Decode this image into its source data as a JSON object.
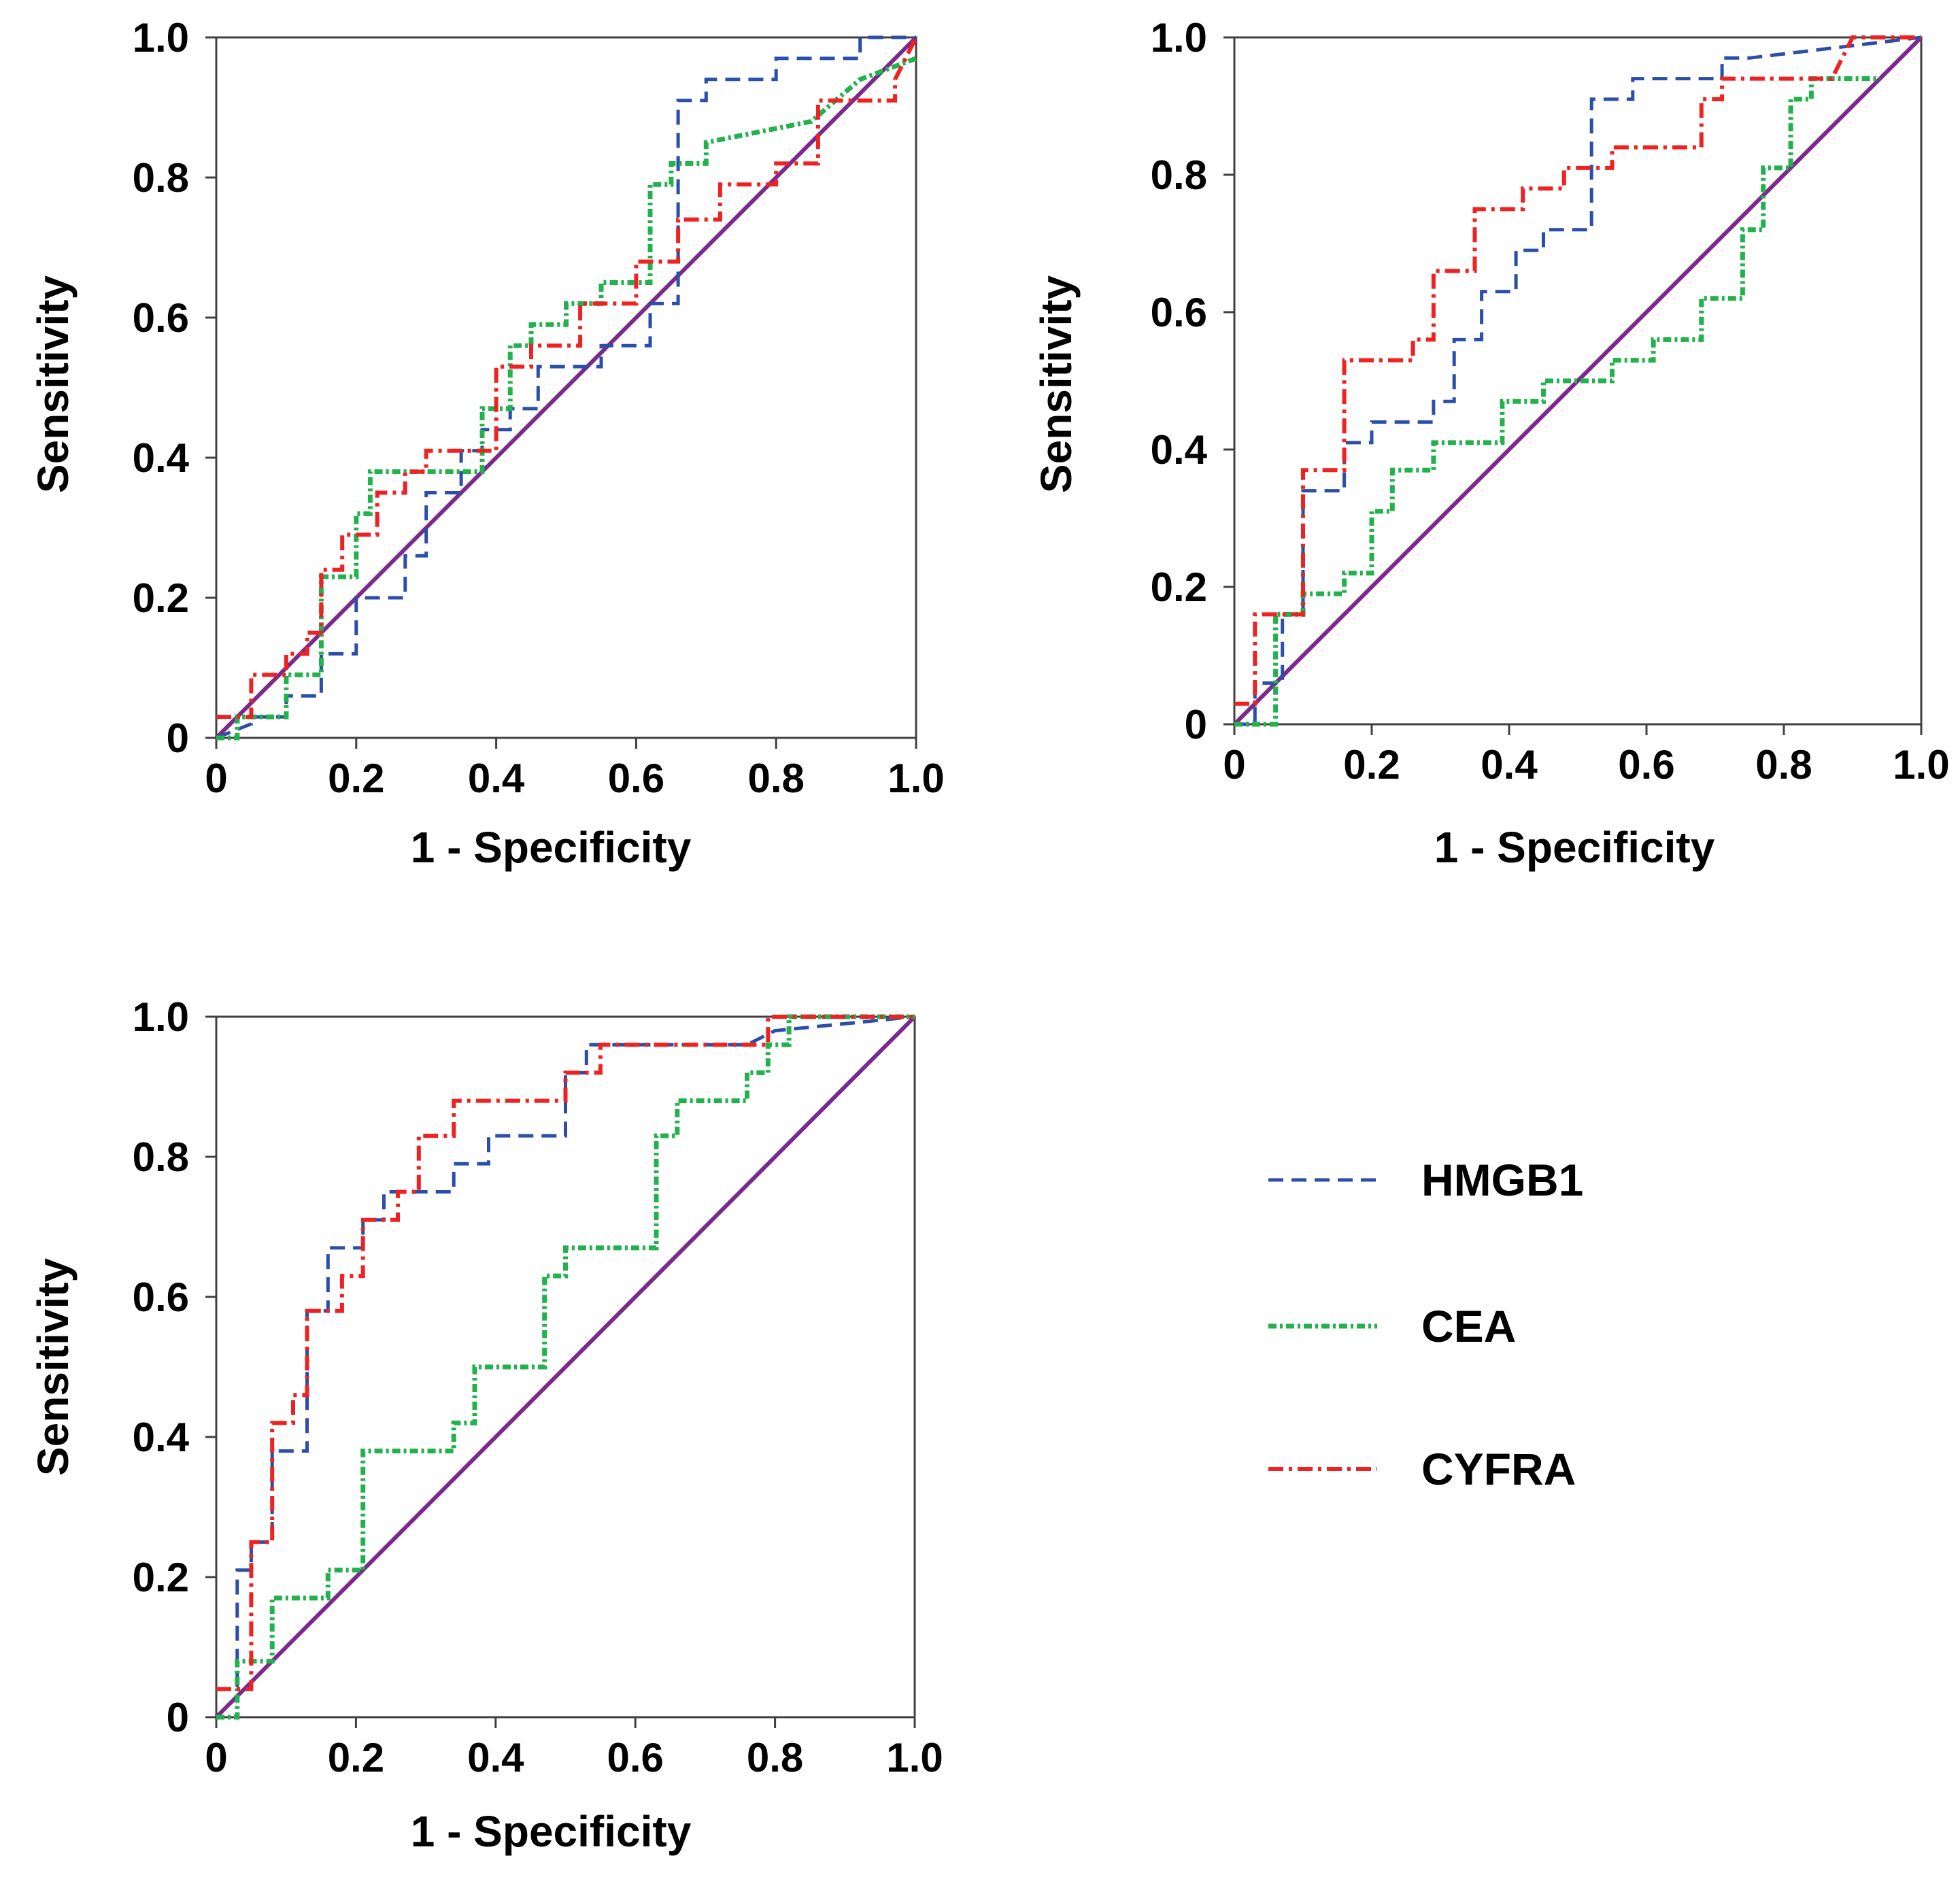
{
  "chart_data": [
    {
      "type": "line",
      "panel": "top-left",
      "title": "",
      "xlabel": "1 - Specificity",
      "ylabel": "Sensitivity",
      "xlim": [
        0,
        1
      ],
      "ylim": [
        0,
        1
      ],
      "xticks": [
        "0",
        "0.2",
        "0.4",
        "0.6",
        "0.8",
        "1.0"
      ],
      "yticks": [
        "0",
        "0.2",
        "0.4",
        "0.6",
        "0.8",
        "1.0"
      ],
      "grid": false,
      "series": [
        {
          "name": "HMGB1",
          "x": [
            0,
            0.05,
            0.05,
            0.1,
            0.1,
            0.15,
            0.15,
            0.2,
            0.2,
            0.27,
            0.27,
            0.3,
            0.3,
            0.35,
            0.35,
            0.38,
            0.38,
            0.42,
            0.42,
            0.46,
            0.46,
            0.55,
            0.55,
            0.62,
            0.62,
            0.66,
            0.66,
            0.7,
            0.7,
            0.8,
            0.8,
            0.92,
            0.92,
            1.0
          ],
          "y": [
            0,
            0.02,
            0.03,
            0.03,
            0.06,
            0.06,
            0.12,
            0.12,
            0.2,
            0.2,
            0.26,
            0.26,
            0.35,
            0.35,
            0.41,
            0.41,
            0.44,
            0.44,
            0.47,
            0.47,
            0.53,
            0.53,
            0.56,
            0.56,
            0.62,
            0.62,
            0.91,
            0.91,
            0.94,
            0.94,
            0.97,
            0.97,
            1.0,
            1.0
          ]
        },
        {
          "name": "CEA",
          "x": [
            0,
            0.03,
            0.03,
            0.1,
            0.1,
            0.15,
            0.15,
            0.2,
            0.2,
            0.22,
            0.22,
            0.38,
            0.38,
            0.42,
            0.42,
            0.45,
            0.45,
            0.5,
            0.5,
            0.55,
            0.55,
            0.62,
            0.62,
            0.65,
            0.65,
            0.7,
            0.7,
            0.85,
            0.92,
            1.0
          ],
          "y": [
            0,
            0,
            0.03,
            0.03,
            0.09,
            0.09,
            0.23,
            0.23,
            0.32,
            0.32,
            0.38,
            0.38,
            0.47,
            0.47,
            0.56,
            0.56,
            0.59,
            0.59,
            0.62,
            0.62,
            0.65,
            0.65,
            0.79,
            0.79,
            0.82,
            0.82,
            0.85,
            0.88,
            0.94,
            0.97
          ]
        },
        {
          "name": "CYFRA",
          "x": [
            0,
            0.05,
            0.05,
            0.1,
            0.1,
            0.13,
            0.13,
            0.15,
            0.15,
            0.18,
            0.18,
            0.23,
            0.23,
            0.27,
            0.27,
            0.3,
            0.3,
            0.4,
            0.4,
            0.45,
            0.45,
            0.52,
            0.52,
            0.6,
            0.6,
            0.66,
            0.66,
            0.72,
            0.72,
            0.8,
            0.8,
            0.86,
            0.86,
            0.97,
            0.97,
            1.0
          ],
          "y": [
            0.03,
            0.03,
            0.09,
            0.09,
            0.12,
            0.12,
            0.15,
            0.15,
            0.24,
            0.24,
            0.29,
            0.29,
            0.35,
            0.35,
            0.38,
            0.38,
            0.41,
            0.41,
            0.53,
            0.53,
            0.56,
            0.56,
            0.62,
            0.62,
            0.68,
            0.68,
            0.74,
            0.74,
            0.79,
            0.79,
            0.82,
            0.82,
            0.91,
            0.91,
            0.94,
            1.0
          ]
        },
        {
          "name": "Reference",
          "x": [
            0,
            1
          ],
          "y": [
            0,
            1
          ]
        }
      ]
    },
    {
      "type": "line",
      "panel": "top-right",
      "title": "",
      "xlabel": "1 - Specificity",
      "ylabel": "Sensitivity",
      "xlim": [
        0,
        1
      ],
      "ylim": [
        0,
        1
      ],
      "xticks": [
        "0",
        "0.2",
        "0.4",
        "0.6",
        "0.8",
        "1.0"
      ],
      "yticks": [
        "0",
        "0.2",
        "0.4",
        "0.6",
        "0.8",
        "1.0"
      ],
      "grid": false,
      "series": [
        {
          "name": "HMGB1",
          "x": [
            0,
            0.03,
            0.03,
            0.07,
            0.07,
            0.1,
            0.1,
            0.16,
            0.16,
            0.2,
            0.2,
            0.29,
            0.29,
            0.32,
            0.32,
            0.36,
            0.36,
            0.41,
            0.41,
            0.45,
            0.45,
            0.52,
            0.52,
            0.58,
            0.58,
            0.71,
            0.71,
            0.75,
            1.0
          ],
          "y": [
            0,
            0,
            0.06,
            0.06,
            0.16,
            0.16,
            0.34,
            0.34,
            0.41,
            0.41,
            0.44,
            0.44,
            0.47,
            0.47,
            0.56,
            0.56,
            0.63,
            0.63,
            0.69,
            0.69,
            0.72,
            0.72,
            0.91,
            0.91,
            0.94,
            0.94,
            0.97,
            0.97,
            1.0
          ]
        },
        {
          "name": "CEA",
          "x": [
            0,
            0.06,
            0.06,
            0.1,
            0.1,
            0.16,
            0.16,
            0.2,
            0.2,
            0.23,
            0.23,
            0.29,
            0.29,
            0.39,
            0.39,
            0.45,
            0.45,
            0.55,
            0.55,
            0.61,
            0.61,
            0.68,
            0.68,
            0.74,
            0.74,
            0.77,
            0.77,
            0.81,
            0.81,
            0.84,
            0.84,
            0.87,
            0.87,
            0.94
          ],
          "y": [
            0,
            0,
            0.16,
            0.16,
            0.19,
            0.19,
            0.22,
            0.22,
            0.31,
            0.31,
            0.37,
            0.37,
            0.41,
            0.41,
            0.47,
            0.47,
            0.5,
            0.5,
            0.53,
            0.53,
            0.56,
            0.56,
            0.62,
            0.62,
            0.72,
            0.72,
            0.81,
            0.81,
            0.91,
            0.91,
            0.94,
            0.94,
            0.94,
            0.94
          ]
        },
        {
          "name": "CYFRA",
          "x": [
            0,
            0.03,
            0.03,
            0.1,
            0.1,
            0.16,
            0.16,
            0.26,
            0.26,
            0.29,
            0.29,
            0.35,
            0.35,
            0.42,
            0.42,
            0.48,
            0.48,
            0.55,
            0.55,
            0.68,
            0.68,
            0.71,
            0.71,
            0.87,
            0.9,
            1.0
          ],
          "y": [
            0.03,
            0.03,
            0.16,
            0.16,
            0.37,
            0.37,
            0.53,
            0.53,
            0.56,
            0.56,
            0.66,
            0.66,
            0.75,
            0.75,
            0.78,
            0.78,
            0.81,
            0.81,
            0.84,
            0.84,
            0.91,
            0.91,
            0.94,
            0.94,
            1.0,
            1.0
          ]
        },
        {
          "name": "Reference",
          "x": [
            0,
            1
          ],
          "y": [
            0,
            1
          ]
        }
      ]
    },
    {
      "type": "line",
      "panel": "bottom-left",
      "title": "",
      "xlabel": "1 - Specificity",
      "ylabel": "Sensitivity",
      "xlim": [
        0,
        1
      ],
      "ylim": [
        0,
        1
      ],
      "xticks": [
        "0",
        "0.2",
        "0.4",
        "0.6",
        "0.8",
        "1.0"
      ],
      "yticks": [
        "0",
        "0.2",
        "0.4",
        "0.6",
        "0.8",
        "1.0"
      ],
      "grid": false,
      "series": [
        {
          "name": "HMGB1",
          "x": [
            0,
            0.03,
            0.03,
            0.05,
            0.05,
            0.08,
            0.08,
            0.13,
            0.13,
            0.16,
            0.16,
            0.21,
            0.21,
            0.24,
            0.24,
            0.34,
            0.34,
            0.39,
            0.39,
            0.5,
            0.5,
            0.53,
            0.53,
            0.76,
            0.76,
            0.8,
            1.0
          ],
          "y": [
            0.04,
            0.04,
            0.21,
            0.21,
            0.25,
            0.25,
            0.38,
            0.38,
            0.58,
            0.58,
            0.67,
            0.67,
            0.71,
            0.71,
            0.75,
            0.75,
            0.79,
            0.79,
            0.83,
            0.83,
            0.92,
            0.92,
            0.96,
            0.96,
            0.96,
            0.98,
            1.0
          ]
        },
        {
          "name": "CEA",
          "x": [
            0,
            0.03,
            0.03,
            0.08,
            0.08,
            0.16,
            0.16,
            0.21,
            0.21,
            0.34,
            0.34,
            0.37,
            0.37,
            0.47,
            0.47,
            0.5,
            0.5,
            0.63,
            0.63,
            0.66,
            0.66,
            0.76,
            0.76,
            0.79,
            0.79,
            0.82,
            0.82,
            1.0
          ],
          "y": [
            0,
            0,
            0.08,
            0.08,
            0.17,
            0.17,
            0.21,
            0.21,
            0.38,
            0.38,
            0.42,
            0.42,
            0.5,
            0.5,
            0.63,
            0.63,
            0.67,
            0.67,
            0.83,
            0.83,
            0.88,
            0.88,
            0.92,
            0.92,
            0.96,
            0.96,
            1.0,
            1.0
          ]
        },
        {
          "name": "CYFRA",
          "x": [
            0,
            0.05,
            0.05,
            0.08,
            0.08,
            0.11,
            0.11,
            0.13,
            0.13,
            0.18,
            0.18,
            0.21,
            0.21,
            0.26,
            0.26,
            0.29,
            0.29,
            0.34,
            0.34,
            0.5,
            0.5,
            0.55,
            0.55,
            0.63,
            0.63,
            0.79,
            0.79,
            1.0
          ],
          "y": [
            0.04,
            0.04,
            0.25,
            0.25,
            0.42,
            0.42,
            0.46,
            0.46,
            0.58,
            0.58,
            0.63,
            0.63,
            0.71,
            0.71,
            0.75,
            0.75,
            0.83,
            0.83,
            0.88,
            0.88,
            0.92,
            0.92,
            0.96,
            0.96,
            0.96,
            0.96,
            1.0,
            1.0
          ]
        },
        {
          "name": "Reference",
          "x": [
            0,
            1
          ],
          "y": [
            0,
            1
          ]
        }
      ]
    }
  ],
  "legend": {
    "placement": "right of bottom panel",
    "items": [
      {
        "label": "HMGB1",
        "color": "#2b4ea8",
        "dash": "dashed"
      },
      {
        "label": "CEA",
        "color": "#22b14c",
        "dash": "dense-dash-dot"
      },
      {
        "label": "CYFRA",
        "color": "#ee2222",
        "dash": "dash-dot"
      }
    ]
  },
  "colors": {
    "HMGB1": "#2b4ea8",
    "CEA": "#22b14c",
    "CYFRA": "#ee2222",
    "Reference": "#7b2a8c"
  }
}
